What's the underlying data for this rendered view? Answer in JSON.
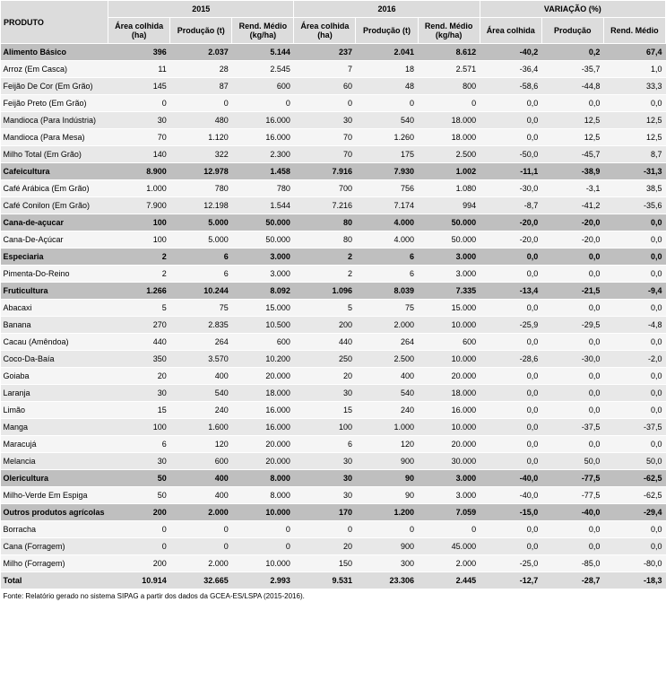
{
  "headers": {
    "produto": "PRODUTO",
    "g2015": "2015",
    "g2016": "2016",
    "gvar": "VARIAÇÃO (%)",
    "area15": "Área colhida (ha)",
    "prod15": "Produção (t)",
    "rend15": "Rend. Médio (kg/ha)",
    "area16": "Área colhida (ha)",
    "prod16": "Produção (t)",
    "rend16": "Rend. Médio (kg/ha)",
    "areav": "Área colhida",
    "prodv": "Produção",
    "rendv": "Rend. Médio"
  },
  "rows": [
    {
      "type": "cat",
      "produto": "Alimento Básico",
      "c": [
        "396",
        "2.037",
        "5.144",
        "237",
        "2.041",
        "8.612",
        "-40,2",
        "0,2",
        "67,4"
      ]
    },
    {
      "type": "odd",
      "produto": "Arroz (Em Casca)",
      "c": [
        "11",
        "28",
        "2.545",
        "7",
        "18",
        "2.571",
        "-36,4",
        "-35,7",
        "1,0"
      ]
    },
    {
      "type": "even",
      "produto": "Feijão De Cor (Em Grão)",
      "c": [
        "145",
        "87",
        "600",
        "60",
        "48",
        "800",
        "-58,6",
        "-44,8",
        "33,3"
      ]
    },
    {
      "type": "odd",
      "produto": "Feijão Preto (Em Grão)",
      "c": [
        "0",
        "0",
        "0",
        "0",
        "0",
        "0",
        "0,0",
        "0,0",
        "0,0"
      ]
    },
    {
      "type": "even",
      "produto": "Mandioca (Para Indústria)",
      "c": [
        "30",
        "480",
        "16.000",
        "30",
        "540",
        "18.000",
        "0,0",
        "12,5",
        "12,5"
      ]
    },
    {
      "type": "odd",
      "produto": "Mandioca (Para Mesa)",
      "c": [
        "70",
        "1.120",
        "16.000",
        "70",
        "1.260",
        "18.000",
        "0,0",
        "12,5",
        "12,5"
      ]
    },
    {
      "type": "even",
      "produto": "Milho Total (Em Grão)",
      "c": [
        "140",
        "322",
        "2.300",
        "70",
        "175",
        "2.500",
        "-50,0",
        "-45,7",
        "8,7"
      ]
    },
    {
      "type": "cat",
      "produto": "Cafeicultura",
      "c": [
        "8.900",
        "12.978",
        "1.458",
        "7.916",
        "7.930",
        "1.002",
        "-11,1",
        "-38,9",
        "-31,3"
      ]
    },
    {
      "type": "odd",
      "produto": "Café Arábica (Em Grão)",
      "c": [
        "1.000",
        "780",
        "780",
        "700",
        "756",
        "1.080",
        "-30,0",
        "-3,1",
        "38,5"
      ]
    },
    {
      "type": "even",
      "produto": "Café Conilon (Em Grão)",
      "c": [
        "7.900",
        "12.198",
        "1.544",
        "7.216",
        "7.174",
        "994",
        "-8,7",
        "-41,2",
        "-35,6"
      ]
    },
    {
      "type": "cat",
      "produto": "Cana-de-açucar",
      "c": [
        "100",
        "5.000",
        "50.000",
        "80",
        "4.000",
        "50.000",
        "-20,0",
        "-20,0",
        "0,0"
      ]
    },
    {
      "type": "odd",
      "produto": "Cana-De-Açúcar",
      "c": [
        "100",
        "5.000",
        "50.000",
        "80",
        "4.000",
        "50.000",
        "-20,0",
        "-20,0",
        "0,0"
      ]
    },
    {
      "type": "cat",
      "produto": "Especiaria",
      "c": [
        "2",
        "6",
        "3.000",
        "2",
        "6",
        "3.000",
        "0,0",
        "0,0",
        "0,0"
      ]
    },
    {
      "type": "odd",
      "produto": "Pimenta-Do-Reino",
      "c": [
        "2",
        "6",
        "3.000",
        "2",
        "6",
        "3.000",
        "0,0",
        "0,0",
        "0,0"
      ]
    },
    {
      "type": "cat",
      "produto": "Fruticultura",
      "c": [
        "1.266",
        "10.244",
        "8.092",
        "1.096",
        "8.039",
        "7.335",
        "-13,4",
        "-21,5",
        "-9,4"
      ]
    },
    {
      "type": "odd",
      "produto": "Abacaxi",
      "c": [
        "5",
        "75",
        "15.000",
        "5",
        "75",
        "15.000",
        "0,0",
        "0,0",
        "0,0"
      ]
    },
    {
      "type": "even",
      "produto": "Banana",
      "c": [
        "270",
        "2.835",
        "10.500",
        "200",
        "2.000",
        "10.000",
        "-25,9",
        "-29,5",
        "-4,8"
      ]
    },
    {
      "type": "odd",
      "produto": "Cacau (Amêndoa)",
      "c": [
        "440",
        "264",
        "600",
        "440",
        "264",
        "600",
        "0,0",
        "0,0",
        "0,0"
      ]
    },
    {
      "type": "even",
      "produto": "Coco-Da-Baía",
      "c": [
        "350",
        "3.570",
        "10.200",
        "250",
        "2.500",
        "10.000",
        "-28,6",
        "-30,0",
        "-2,0"
      ]
    },
    {
      "type": "odd",
      "produto": "Goiaba",
      "c": [
        "20",
        "400",
        "20.000",
        "20",
        "400",
        "20.000",
        "0,0",
        "0,0",
        "0,0"
      ]
    },
    {
      "type": "even",
      "produto": "Laranja",
      "c": [
        "30",
        "540",
        "18.000",
        "30",
        "540",
        "18.000",
        "0,0",
        "0,0",
        "0,0"
      ]
    },
    {
      "type": "odd",
      "produto": "Limão",
      "c": [
        "15",
        "240",
        "16.000",
        "15",
        "240",
        "16.000",
        "0,0",
        "0,0",
        "0,0"
      ]
    },
    {
      "type": "even",
      "produto": "Manga",
      "c": [
        "100",
        "1.600",
        "16.000",
        "100",
        "1.000",
        "10.000",
        "0,0",
        "-37,5",
        "-37,5"
      ]
    },
    {
      "type": "odd",
      "produto": "Maracujá",
      "c": [
        "6",
        "120",
        "20.000",
        "6",
        "120",
        "20.000",
        "0,0",
        "0,0",
        "0,0"
      ]
    },
    {
      "type": "even",
      "produto": "Melancia",
      "c": [
        "30",
        "600",
        "20.000",
        "30",
        "900",
        "30.000",
        "0,0",
        "50,0",
        "50,0"
      ]
    },
    {
      "type": "cat",
      "produto": "Olericultura",
      "c": [
        "50",
        "400",
        "8.000",
        "30",
        "90",
        "3.000",
        "-40,0",
        "-77,5",
        "-62,5"
      ]
    },
    {
      "type": "odd",
      "produto": "Milho-Verde Em Espiga",
      "c": [
        "50",
        "400",
        "8.000",
        "30",
        "90",
        "3.000",
        "-40,0",
        "-77,5",
        "-62,5"
      ]
    },
    {
      "type": "cat",
      "produto": "Outros produtos agrícolas",
      "c": [
        "200",
        "2.000",
        "10.000",
        "170",
        "1.200",
        "7.059",
        "-15,0",
        "-40,0",
        "-29,4"
      ]
    },
    {
      "type": "odd",
      "produto": "Borracha",
      "c": [
        "0",
        "0",
        "0",
        "0",
        "0",
        "0",
        "0,0",
        "0,0",
        "0,0"
      ]
    },
    {
      "type": "even",
      "produto": "Cana (Forragem)",
      "c": [
        "0",
        "0",
        "0",
        "20",
        "900",
        "45.000",
        "0,0",
        "0,0",
        "0,0"
      ]
    },
    {
      "type": "odd",
      "produto": "Milho (Forragem)",
      "c": [
        "200",
        "2.000",
        "10.000",
        "150",
        "300",
        "2.000",
        "-25,0",
        "-85,0",
        "-80,0"
      ]
    },
    {
      "type": "total",
      "produto": "Total",
      "c": [
        "10.914",
        "32.665",
        "2.993",
        "9.531",
        "23.306",
        "2.445",
        "-12,7",
        "-28,7",
        "-18,3"
      ]
    }
  ],
  "footnote": "Fonte: Relatório gerado no sistema SIPAG a partir dos dados da GCEA-ES/LSPA (2015-2016)."
}
